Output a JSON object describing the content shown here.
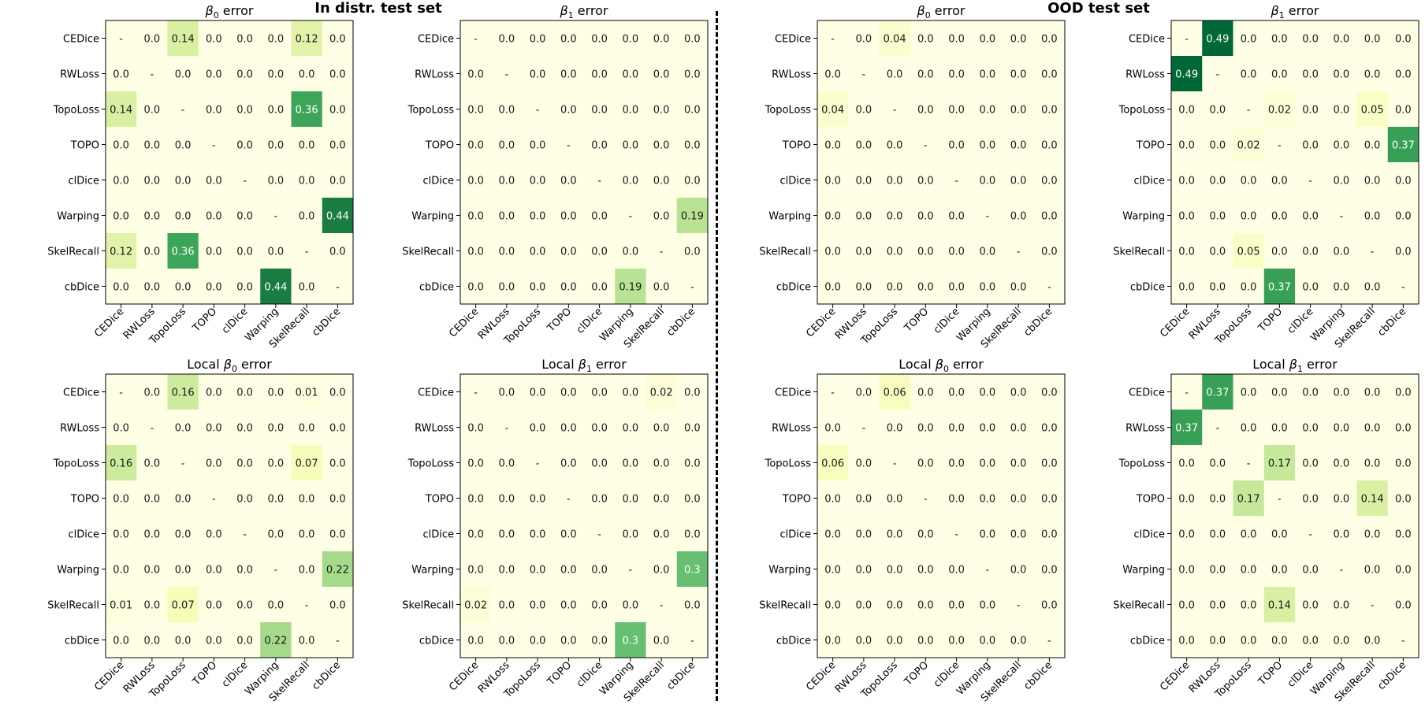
{
  "sections": [
    {
      "title": "In distr. test set"
    },
    {
      "title": "OOD test set"
    }
  ],
  "labels": [
    "CEDice",
    "RWLoss",
    "TopoLoss",
    "TOPO",
    "clDice",
    "Warping",
    "SkelRecall",
    "cbDice"
  ],
  "chart_data": [
    {
      "type": "heatmap",
      "section": "In distr. test set",
      "title_prefix": "",
      "symbol": "β",
      "subscript": "0",
      "title_suffix": " error",
      "values": [
        [
          null,
          0.0,
          0.14,
          0.0,
          0.0,
          0.0,
          0.12,
          0.0
        ],
        [
          0.0,
          null,
          0.0,
          0.0,
          0.0,
          0.0,
          0.0,
          0.0
        ],
        [
          0.14,
          0.0,
          null,
          0.0,
          0.0,
          0.0,
          0.36,
          0.0
        ],
        [
          0.0,
          0.0,
          0.0,
          null,
          0.0,
          0.0,
          0.0,
          0.0
        ],
        [
          0.0,
          0.0,
          0.0,
          0.0,
          null,
          0.0,
          0.0,
          0.0
        ],
        [
          0.0,
          0.0,
          0.0,
          0.0,
          0.0,
          null,
          0.0,
          0.44
        ],
        [
          0.12,
          0.0,
          0.36,
          0.0,
          0.0,
          0.0,
          null,
          0.0
        ],
        [
          0.0,
          0.0,
          0.0,
          0.0,
          0.0,
          0.44,
          0.0,
          null
        ]
      ]
    },
    {
      "type": "heatmap",
      "section": "In distr. test set",
      "title_prefix": "",
      "symbol": "β",
      "subscript": "1",
      "title_suffix": " error",
      "values": [
        [
          null,
          0.0,
          0.0,
          0.0,
          0.0,
          0.0,
          0.0,
          0.0
        ],
        [
          0.0,
          null,
          0.0,
          0.0,
          0.0,
          0.0,
          0.0,
          0.0
        ],
        [
          0.0,
          0.0,
          null,
          0.0,
          0.0,
          0.0,
          0.0,
          0.0
        ],
        [
          0.0,
          0.0,
          0.0,
          null,
          0.0,
          0.0,
          0.0,
          0.0
        ],
        [
          0.0,
          0.0,
          0.0,
          0.0,
          null,
          0.0,
          0.0,
          0.0
        ],
        [
          0.0,
          0.0,
          0.0,
          0.0,
          0.0,
          null,
          0.0,
          0.19
        ],
        [
          0.0,
          0.0,
          0.0,
          0.0,
          0.0,
          0.0,
          null,
          0.0
        ],
        [
          0.0,
          0.0,
          0.0,
          0.0,
          0.0,
          0.19,
          0.0,
          null
        ]
      ]
    },
    {
      "type": "heatmap",
      "section": "OOD test set",
      "title_prefix": "",
      "symbol": "β",
      "subscript": "0",
      "title_suffix": " error",
      "values": [
        [
          null,
          0.0,
          0.04,
          0.0,
          0.0,
          0.0,
          0.0,
          0.0
        ],
        [
          0.0,
          null,
          0.0,
          0.0,
          0.0,
          0.0,
          0.0,
          0.0
        ],
        [
          0.04,
          0.0,
          null,
          0.0,
          0.0,
          0.0,
          0.0,
          0.0
        ],
        [
          0.0,
          0.0,
          0.0,
          null,
          0.0,
          0.0,
          0.0,
          0.0
        ],
        [
          0.0,
          0.0,
          0.0,
          0.0,
          null,
          0.0,
          0.0,
          0.0
        ],
        [
          0.0,
          0.0,
          0.0,
          0.0,
          0.0,
          null,
          0.0,
          0.0
        ],
        [
          0.0,
          0.0,
          0.0,
          0.0,
          0.0,
          0.0,
          null,
          0.0
        ],
        [
          0.0,
          0.0,
          0.0,
          0.0,
          0.0,
          0.0,
          0.0,
          null
        ]
      ]
    },
    {
      "type": "heatmap",
      "section": "OOD test set",
      "title_prefix": "",
      "symbol": "β",
      "subscript": "1",
      "title_suffix": " error",
      "values": [
        [
          null,
          0.49,
          0.0,
          0.0,
          0.0,
          0.0,
          0.0,
          0.0
        ],
        [
          0.49,
          null,
          0.0,
          0.0,
          0.0,
          0.0,
          0.0,
          0.0
        ],
        [
          0.0,
          0.0,
          null,
          0.02,
          0.0,
          0.0,
          0.05,
          0.0
        ],
        [
          0.0,
          0.0,
          0.02,
          null,
          0.0,
          0.0,
          0.0,
          0.37
        ],
        [
          0.0,
          0.0,
          0.0,
          0.0,
          null,
          0.0,
          0.0,
          0.0
        ],
        [
          0.0,
          0.0,
          0.0,
          0.0,
          0.0,
          null,
          0.0,
          0.0
        ],
        [
          0.0,
          0.0,
          0.05,
          0.0,
          0.0,
          0.0,
          null,
          0.0
        ],
        [
          0.0,
          0.0,
          0.0,
          0.37,
          0.0,
          0.0,
          0.0,
          null
        ]
      ]
    },
    {
      "type": "heatmap",
      "section": "In distr. test set",
      "title_prefix": "Local ",
      "symbol": "β",
      "subscript": "0",
      "title_suffix": " error",
      "values": [
        [
          null,
          0.0,
          0.16,
          0.0,
          0.0,
          0.0,
          0.01,
          0.0
        ],
        [
          0.0,
          null,
          0.0,
          0.0,
          0.0,
          0.0,
          0.0,
          0.0
        ],
        [
          0.16,
          0.0,
          null,
          0.0,
          0.0,
          0.0,
          0.07,
          0.0
        ],
        [
          0.0,
          0.0,
          0.0,
          null,
          0.0,
          0.0,
          0.0,
          0.0
        ],
        [
          0.0,
          0.0,
          0.0,
          0.0,
          null,
          0.0,
          0.0,
          0.0
        ],
        [
          0.0,
          0.0,
          0.0,
          0.0,
          0.0,
          null,
          0.0,
          0.22
        ],
        [
          0.01,
          0.0,
          0.07,
          0.0,
          0.0,
          0.0,
          null,
          0.0
        ],
        [
          0.0,
          0.0,
          0.0,
          0.0,
          0.0,
          0.22,
          0.0,
          null
        ]
      ]
    },
    {
      "type": "heatmap",
      "section": "In distr. test set",
      "title_prefix": "Local ",
      "symbol": "β",
      "subscript": "1",
      "title_suffix": " error",
      "values": [
        [
          null,
          0.0,
          0.0,
          0.0,
          0.0,
          0.0,
          0.02,
          0.0
        ],
        [
          0.0,
          null,
          0.0,
          0.0,
          0.0,
          0.0,
          0.0,
          0.0
        ],
        [
          0.0,
          0.0,
          null,
          0.0,
          0.0,
          0.0,
          0.0,
          0.0
        ],
        [
          0.0,
          0.0,
          0.0,
          null,
          0.0,
          0.0,
          0.0,
          0.0
        ],
        [
          0.0,
          0.0,
          0.0,
          0.0,
          null,
          0.0,
          0.0,
          0.0
        ],
        [
          0.0,
          0.0,
          0.0,
          0.0,
          0.0,
          null,
          0.0,
          0.3
        ],
        [
          0.02,
          0.0,
          0.0,
          0.0,
          0.0,
          0.0,
          null,
          0.0
        ],
        [
          0.0,
          0.0,
          0.0,
          0.0,
          0.0,
          0.3,
          0.0,
          null
        ]
      ]
    },
    {
      "type": "heatmap",
      "section": "OOD test set",
      "title_prefix": "Local ",
      "symbol": "β",
      "subscript": "0",
      "title_suffix": " error",
      "values": [
        [
          null,
          0.0,
          0.06,
          0.0,
          0.0,
          0.0,
          0.0,
          0.0
        ],
        [
          0.0,
          null,
          0.0,
          0.0,
          0.0,
          0.0,
          0.0,
          0.0
        ],
        [
          0.06,
          0.0,
          null,
          0.0,
          0.0,
          0.0,
          0.0,
          0.0
        ],
        [
          0.0,
          0.0,
          0.0,
          null,
          0.0,
          0.0,
          0.0,
          0.0
        ],
        [
          0.0,
          0.0,
          0.0,
          0.0,
          null,
          0.0,
          0.0,
          0.0
        ],
        [
          0.0,
          0.0,
          0.0,
          0.0,
          0.0,
          null,
          0.0,
          0.0
        ],
        [
          0.0,
          0.0,
          0.0,
          0.0,
          0.0,
          0.0,
          null,
          0.0
        ],
        [
          0.0,
          0.0,
          0.0,
          0.0,
          0.0,
          0.0,
          0.0,
          null
        ]
      ]
    },
    {
      "type": "heatmap",
      "section": "OOD test set",
      "title_prefix": "Local ",
      "symbol": "β",
      "subscript": "1",
      "title_suffix": " error",
      "values": [
        [
          null,
          0.37,
          0.0,
          0.0,
          0.0,
          0.0,
          0.0,
          0.0
        ],
        [
          0.37,
          null,
          0.0,
          0.0,
          0.0,
          0.0,
          0.0,
          0.0
        ],
        [
          0.0,
          0.0,
          null,
          0.17,
          0.0,
          0.0,
          0.0,
          0.0
        ],
        [
          0.0,
          0.0,
          0.17,
          null,
          0.0,
          0.0,
          0.14,
          0.0
        ],
        [
          0.0,
          0.0,
          0.0,
          0.0,
          null,
          0.0,
          0.0,
          0.0
        ],
        [
          0.0,
          0.0,
          0.0,
          0.0,
          0.0,
          null,
          0.0,
          0.0
        ],
        [
          0.0,
          0.0,
          0.0,
          0.14,
          0.0,
          0.0,
          null,
          0.0
        ],
        [
          0.0,
          0.0,
          0.0,
          0.0,
          0.0,
          0.0,
          0.0,
          null
        ]
      ]
    }
  ],
  "colormap": {
    "name": "YlGn",
    "vmin": 0.0,
    "vmax": 0.49,
    "colors": [
      "#ffffe5",
      "#f7fcb9",
      "#d9f0a3",
      "#addd8e",
      "#78c679",
      "#41ab5d",
      "#238443",
      "#006837"
    ]
  },
  "diagonal_mark": "-"
}
